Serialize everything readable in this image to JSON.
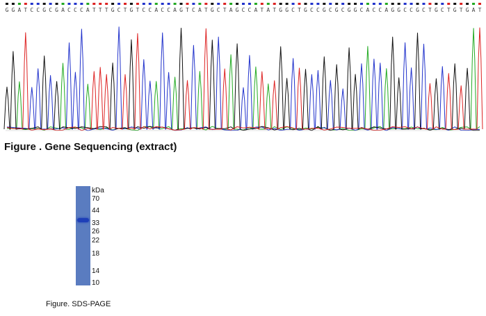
{
  "sequencing": {
    "caption": "Figure . Gene Sequencing (extract)",
    "bases": "GGATCCGCGACCCATTTGCTGTCCACCAGTCATGCTAGCCATATGGCTGCCGCGCGGCACCAGGCCGCTGCTGTGAT",
    "colors": {
      "A": "#22aa22",
      "C": "#2233cc",
      "G": "#111111",
      "T": "#dd2222"
    }
  },
  "sds_page": {
    "caption": "Figure. SDS-PAGE",
    "unit_label": "kDa",
    "markers": [
      "70",
      "44",
      "33",
      "26",
      "22",
      "18",
      "14",
      "10"
    ]
  }
}
